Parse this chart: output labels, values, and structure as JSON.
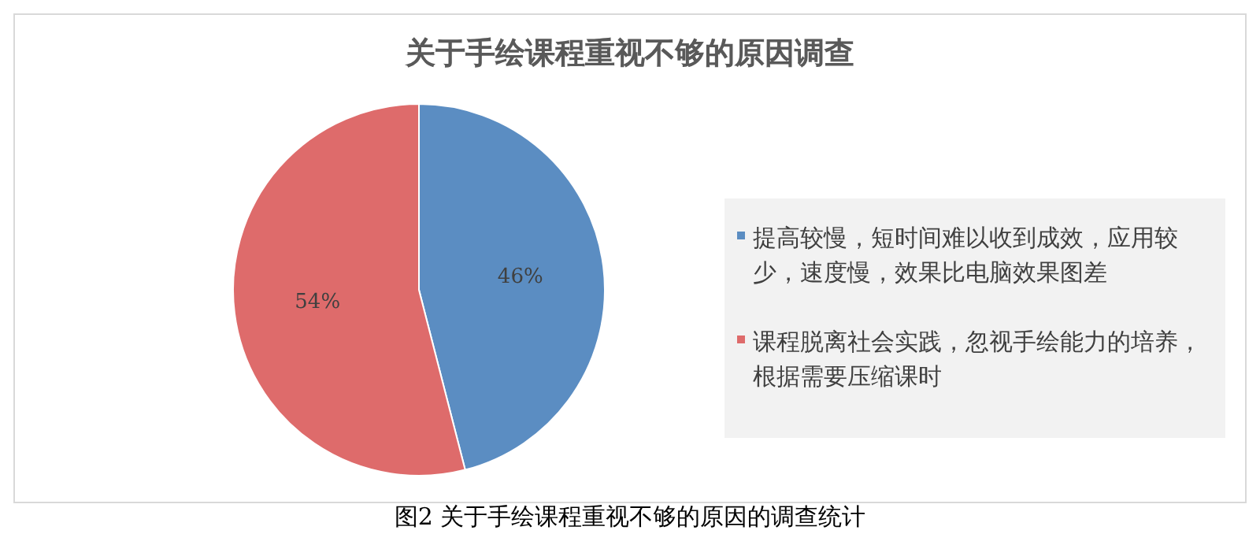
{
  "chart_data": {
    "type": "pie",
    "title": "关于手绘课程重视不够的原因调查",
    "categories": [
      "提高较慢，短时间难以收到成效，应用较少，速度慢，效果比电脑效果图差",
      "课程脱离社会实践，忽视手绘能力的培养，根据需要压缩课时"
    ],
    "values": [
      46,
      54
    ],
    "value_labels": [
      "46%",
      "54%"
    ],
    "colors": [
      "#5b8dc2",
      "#de6b6b"
    ],
    "legend": "right",
    "annotations": [
      "图2 关于手绘课程重视不够的原因的调查统计"
    ]
  }
}
